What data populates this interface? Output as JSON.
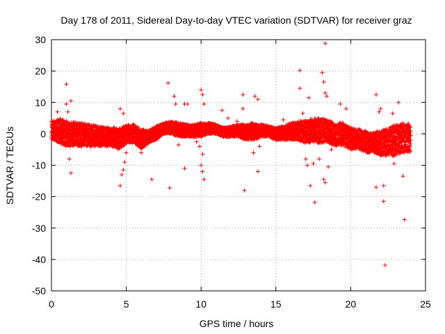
{
  "chart_data": {
    "type": "scatter",
    "title": "Day 178 of 2011, Sidereal Day-to-day VTEC variation (SDTVAR) for receiver graz",
    "xlabel": "GPS time / hours",
    "ylabel": "SDTVAR / TECUs",
    "xlim": [
      0,
      25
    ],
    "ylim": [
      -50,
      30
    ],
    "x_ticks": [
      0,
      5,
      10,
      15,
      20,
      25
    ],
    "y_ticks": [
      30,
      20,
      10,
      0,
      -10,
      -20,
      -30,
      -40,
      -50
    ],
    "grid": true,
    "marker": "+",
    "color": "#ff0000",
    "band_envelope": {
      "x": [
        0,
        0.5,
        1,
        2,
        3,
        4,
        4.5,
        5,
        5.5,
        6,
        6.5,
        7,
        7.5,
        8,
        8.5,
        9,
        9.5,
        10,
        10.5,
        11,
        11.5,
        12,
        12.5,
        13,
        13.5,
        14,
        14.5,
        15,
        15.5,
        16,
        16.5,
        17,
        17.5,
        18,
        18.5,
        19,
        19.5,
        20,
        20.5,
        21,
        21.5,
        22,
        22.5,
        23,
        23.5,
        24
      ],
      "upper": [
        4,
        5,
        4,
        3.5,
        2.5,
        2,
        2,
        3,
        3,
        1.5,
        1,
        2.5,
        3.5,
        4,
        3.5,
        3,
        3,
        3.5,
        3.5,
        3,
        2,
        2.5,
        3,
        3,
        3.5,
        3,
        2.5,
        2,
        2.5,
        3.5,
        4,
        4.5,
        5,
        5,
        4.5,
        3,
        4,
        2,
        1.5,
        1,
        0.5,
        1,
        2,
        3,
        3.5,
        3
      ],
      "lower": [
        -2,
        -3,
        -4,
        -4,
        -4,
        -4,
        -5,
        -3,
        -3,
        -5,
        -3,
        -2,
        0,
        0,
        -1,
        -1,
        -1,
        -1,
        0,
        0,
        -1,
        -1,
        -1,
        -2,
        -2,
        -1,
        -1,
        -2,
        -2,
        -2,
        -2,
        -3,
        -3,
        -3,
        -3,
        -4,
        -4,
        -5,
        -5,
        -6,
        -6,
        -7,
        -7,
        -7,
        -6,
        -6
      ]
    },
    "outliers": [
      {
        "x": 1.0,
        "y": 15.8
      },
      {
        "x": 1.0,
        "y": 9.5
      },
      {
        "x": 1.1,
        "y": 7.0
      },
      {
        "x": 1.3,
        "y": 10.5
      },
      {
        "x": 1.3,
        "y": -12.5
      },
      {
        "x": 1.2,
        "y": -8.0
      },
      {
        "x": 0.2,
        "y": 3.0
      },
      {
        "x": 0.4,
        "y": 7.0
      },
      {
        "x": 4.6,
        "y": 8.0
      },
      {
        "x": 4.8,
        "y": 6.5
      },
      {
        "x": 4.6,
        "y": -16.5
      },
      {
        "x": 4.7,
        "y": -13.0
      },
      {
        "x": 4.8,
        "y": -11.5
      },
      {
        "x": 4.9,
        "y": -9.0
      },
      {
        "x": 5.0,
        "y": -6.0
      },
      {
        "x": 6.7,
        "y": -14.5
      },
      {
        "x": 7.8,
        "y": 16.2
      },
      {
        "x": 7.9,
        "y": -17.2
      },
      {
        "x": 8.2,
        "y": 12.0
      },
      {
        "x": 8.3,
        "y": 9.5
      },
      {
        "x": 8.9,
        "y": -11.0
      },
      {
        "x": 8.9,
        "y": 9.5
      },
      {
        "x": 9.1,
        "y": 9.5
      },
      {
        "x": 9.9,
        "y": -4.0
      },
      {
        "x": 10.0,
        "y": 14.0
      },
      {
        "x": 10.1,
        "y": 12.5
      },
      {
        "x": 10.2,
        "y": 9.5
      },
      {
        "x": 10.0,
        "y": -10.0
      },
      {
        "x": 10.1,
        "y": -12.0
      },
      {
        "x": 10.2,
        "y": -14.5
      },
      {
        "x": 10.1,
        "y": -6.5
      },
      {
        "x": 11.4,
        "y": 7.5
      },
      {
        "x": 12.4,
        "y": 4.0
      },
      {
        "x": 12.8,
        "y": 12.5
      },
      {
        "x": 12.9,
        "y": -18.0
      },
      {
        "x": 12.8,
        "y": 8.0
      },
      {
        "x": 13.6,
        "y": 12.0
      },
      {
        "x": 13.8,
        "y": 11.0
      },
      {
        "x": 13.8,
        "y": -12.0
      },
      {
        "x": 13.5,
        "y": -6.0
      },
      {
        "x": 13.9,
        "y": -4.0
      },
      {
        "x": 16.6,
        "y": 20.2
      },
      {
        "x": 16.6,
        "y": 14.5
      },
      {
        "x": 16.8,
        "y": 6.5
      },
      {
        "x": 17.0,
        "y": -8.0
      },
      {
        "x": 17.1,
        "y": -10.0
      },
      {
        "x": 17.2,
        "y": 11.5
      },
      {
        "x": 17.3,
        "y": -16.5
      },
      {
        "x": 17.5,
        "y": -9.5
      },
      {
        "x": 17.6,
        "y": -21.8
      },
      {
        "x": 17.9,
        "y": -8.0
      },
      {
        "x": 18.1,
        "y": 19.5
      },
      {
        "x": 18.2,
        "y": 16.5
      },
      {
        "x": 18.3,
        "y": 28.8
      },
      {
        "x": 18.3,
        "y": 13.0
      },
      {
        "x": 18.4,
        "y": 12.0
      },
      {
        "x": 18.2,
        "y": -14.5
      },
      {
        "x": 18.3,
        "y": -15.5
      },
      {
        "x": 18.5,
        "y": -10.5
      },
      {
        "x": 18.7,
        "y": -5.0
      },
      {
        "x": 19.3,
        "y": 9.5
      },
      {
        "x": 19.7,
        "y": 8.0
      },
      {
        "x": 21.7,
        "y": 12.5
      },
      {
        "x": 21.7,
        "y": -17.0
      },
      {
        "x": 22.0,
        "y": 8.0
      },
      {
        "x": 22.2,
        "y": -16.5
      },
      {
        "x": 22.2,
        "y": -21.5
      },
      {
        "x": 22.3,
        "y": -41.8
      },
      {
        "x": 22.8,
        "y": 6.5
      },
      {
        "x": 22.9,
        "y": -9.5
      },
      {
        "x": 23.2,
        "y": 10.0
      },
      {
        "x": 23.5,
        "y": -13.5
      },
      {
        "x": 23.6,
        "y": -27.3
      },
      {
        "x": 21.9,
        "y": 7.0
      },
      {
        "x": 4.8,
        "y": -3.0
      },
      {
        "x": 8.5,
        "y": -3.5
      },
      {
        "x": 6.0,
        "y": -6.0
      },
      {
        "x": 9.7,
        "y": -2.5
      },
      {
        "x": 11.8,
        "y": 5.0
      },
      {
        "x": 15.5,
        "y": 4.5
      }
    ]
  }
}
